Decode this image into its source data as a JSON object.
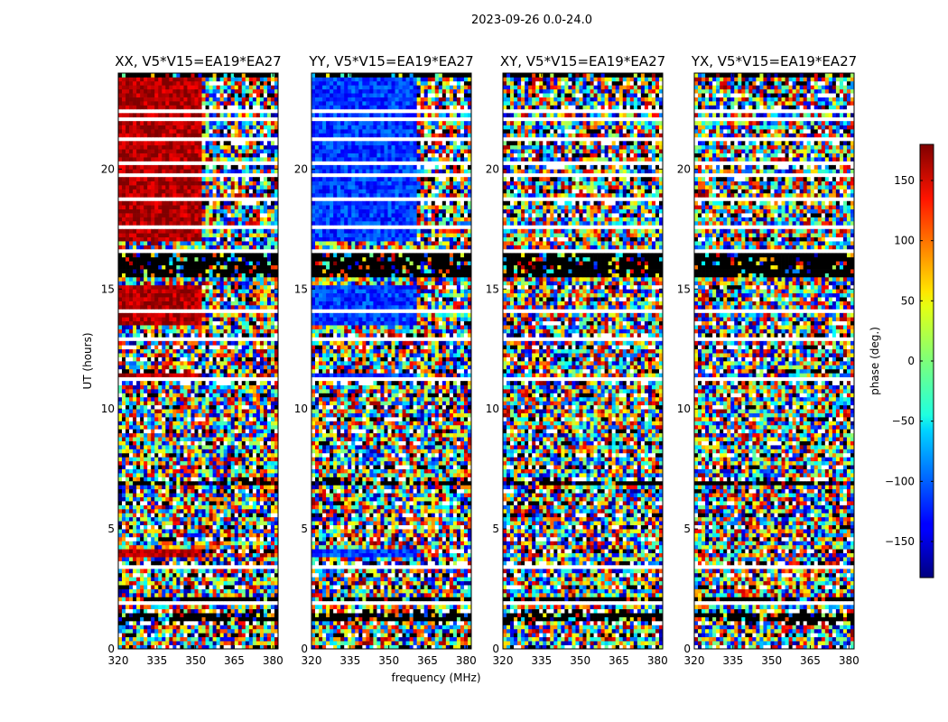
{
  "chart_data": {
    "type": "heatmap",
    "title": "2023-09-26 0.0-24.0",
    "xlabel": "frequency (MHz)",
    "ylabel": "UT (hours)",
    "xlim": [
      320,
      382
    ],
    "ylim": [
      0,
      24
    ],
    "x_ticks": [
      320,
      335,
      350,
      365,
      380
    ],
    "y_ticks": [
      0,
      5,
      10,
      15,
      20
    ],
    "panels": [
      {
        "title": "XX, V5*V15=EA19*EA27"
      },
      {
        "title": "YY, V5*V15=EA19*EA27"
      },
      {
        "title": "XY, V5*V15=EA19*EA27"
      },
      {
        "title": "YX, V5*V15=EA19*EA27"
      }
    ],
    "colorbar": {
      "label": "phase (deg.)",
      "range": [
        -180,
        180
      ],
      "ticks": [
        150,
        100,
        50,
        0,
        -50,
        -100,
        -150
      ],
      "tick_labels": [
        "150",
        "100",
        "50",
        "0",
        "−50",
        "−100",
        "−150"
      ],
      "colormap": "jet"
    },
    "flagged_rows_hours": [
      [
        1.78,
        1.98
      ],
      [
        3.3,
        3.42
      ],
      [
        11.25,
        11.4
      ],
      [
        12.85,
        13.0
      ],
      [
        14.05,
        14.2
      ],
      [
        16.55,
        16.7
      ],
      [
        17.55,
        17.65
      ],
      [
        18.65,
        18.8
      ],
      [
        19.65,
        19.8
      ],
      [
        20.2,
        20.35
      ],
      [
        21.2,
        21.3
      ],
      [
        22.0,
        22.15
      ],
      [
        22.35,
        22.5
      ],
      [
        23.1,
        23.2
      ]
    ],
    "dark_rows_hours": [
      [
        1.2,
        1.45
      ],
      [
        2.0,
        2.1
      ],
      [
        6.85,
        6.95
      ],
      [
        15.5,
        16.45
      ],
      [
        23.9,
        24.0
      ]
    ],
    "coherent_phase": {
      "XX": {
        "phase_deg": 165,
        "freq_max": 353
      },
      "YY": {
        "phase_deg": -115,
        "freq_max": 361
      }
    }
  }
}
